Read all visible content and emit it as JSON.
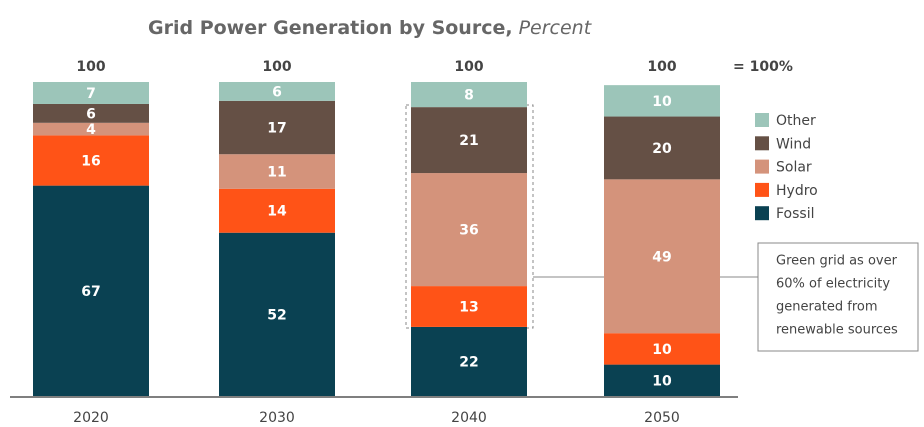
{
  "chart_data": {
    "type": "stacked_bar",
    "title": "Grid Power Generation by Source,",
    "subtitle": "Percent",
    "categories": [
      "2020",
      "2030",
      "2040",
      "2050"
    ],
    "series": [
      {
        "name": "Fossil",
        "color": "#0a4152",
        "values": [
          67,
          52,
          22,
          10
        ]
      },
      {
        "name": "Hydro",
        "color": "#ff5317",
        "values": [
          16,
          14,
          13,
          10
        ]
      },
      {
        "name": "Solar",
        "color": "#d4937b",
        "values": [
          4,
          11,
          36,
          49
        ]
      },
      {
        "name": "Wind",
        "color": "#655045",
        "values": [
          6,
          17,
          21,
          20
        ]
      },
      {
        "name": "Other",
        "color": "#9cc5b9",
        "values": [
          7,
          6,
          8,
          10
        ]
      }
    ],
    "totals": [
      100,
      100,
      100,
      100
    ],
    "total_note": "= 100%",
    "ylim": [
      0,
      100
    ],
    "annotation": {
      "lines": [
        "Green grid as over",
        "60% of electricity",
        "generated from",
        "renewable sources"
      ]
    }
  }
}
